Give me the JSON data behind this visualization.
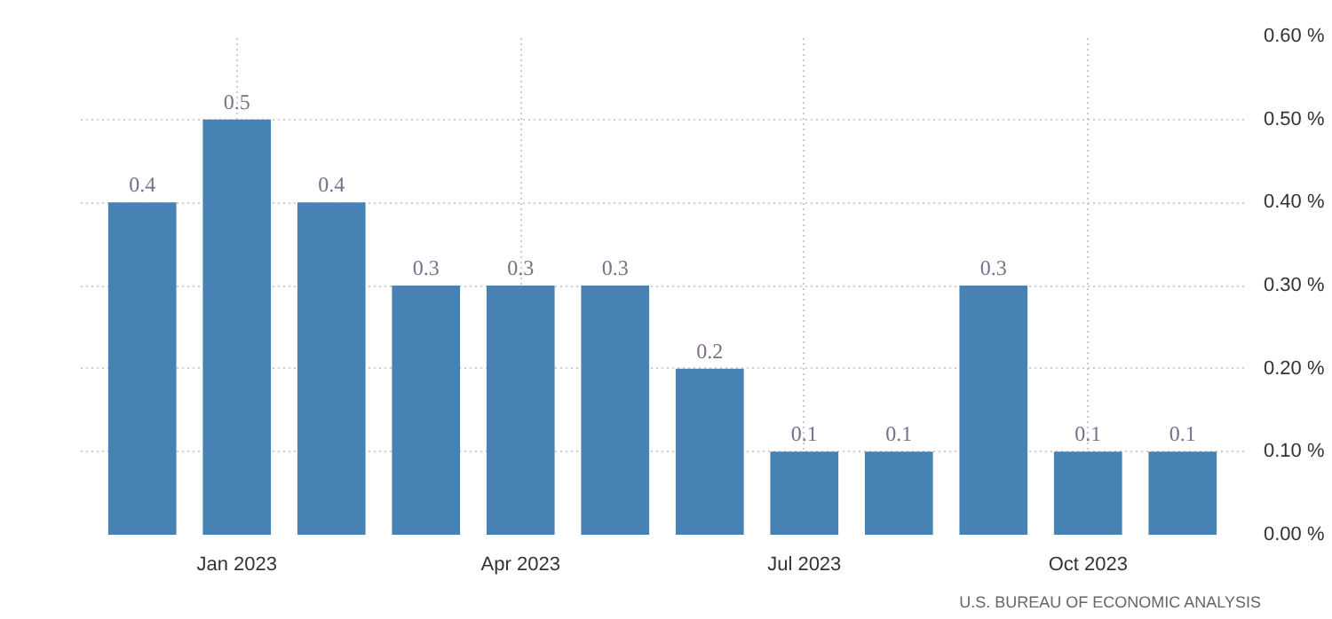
{
  "chart_data": {
    "type": "bar",
    "categories": [
      null,
      "Jan 2023",
      null,
      null,
      "Apr 2023",
      null,
      null,
      "Jul 2023",
      null,
      null,
      "Oct 2023",
      null
    ],
    "values": [
      0.4,
      0.5,
      0.4,
      0.3,
      0.3,
      0.3,
      0.2,
      0.1,
      0.1,
      0.3,
      0.1,
      0.1
    ],
    "color": "#4682b4",
    "ylim": [
      0,
      0.6
    ],
    "yticks": [
      {
        "value": 0,
        "label": "0.00 %"
      },
      {
        "value": 0.1,
        "label": "0.10 %"
      },
      {
        "value": 0.2,
        "label": "0.20 %"
      },
      {
        "value": 0.3,
        "label": "0.30 %"
      },
      {
        "value": 0.4,
        "label": "0.40 %"
      },
      {
        "value": 0.5,
        "label": "0.50 %"
      },
      {
        "value": 0.6,
        "label": "0.60 %"
      }
    ],
    "data_labels": true,
    "grid": true,
    "annotations": [
      "U.S. BUREAU OF ECONOMIC ANALYSIS"
    ]
  }
}
